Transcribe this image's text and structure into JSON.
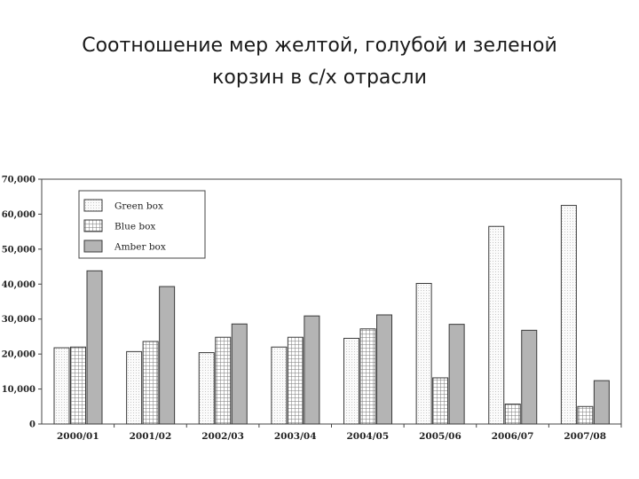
{
  "slide": {
    "title_line1": "Соотношение мер желтой, голубой и зеленой",
    "title_line2": "корзин в с/х отрасли"
  },
  "chart_data": {
    "type": "bar",
    "categories": [
      "2000/01",
      "2001/02",
      "2002/03",
      "2003/04",
      "2004/05",
      "2005/06",
      "2006/07",
      "2007/08"
    ],
    "series": [
      {
        "name": "Green box",
        "pattern": "dots",
        "color": "#f6f6f6",
        "values": [
          21800,
          20700,
          20400,
          22000,
          24500,
          40200,
          56500,
          62500
        ]
      },
      {
        "name": "Blue box",
        "pattern": "grid",
        "color": "#e8e8e8",
        "values": [
          22000,
          23600,
          24800,
          24800,
          27200,
          13200,
          5700,
          5000
        ]
      },
      {
        "name": "Amber box",
        "pattern": "solid",
        "color": "#b4b4b4",
        "values": [
          43800,
          39300,
          28600,
          30900,
          31200,
          28500,
          26800,
          12400
        ]
      }
    ],
    "ylim": [
      0,
      70000
    ],
    "yticks": [
      "0",
      "10,000",
      "20,000",
      "30,000",
      "40,000",
      "50,000",
      "60,000",
      "70,000"
    ],
    "xlabel": "",
    "ylabel": "",
    "legend_position": "top-left",
    "grid": false
  }
}
